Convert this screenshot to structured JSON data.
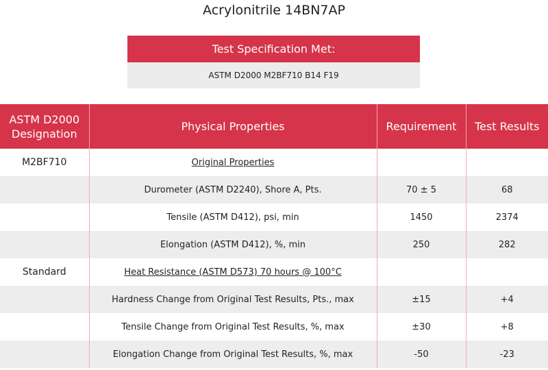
{
  "title": "Acrylonitrile 14BN7AP",
  "spec": {
    "heading": "Test Specification Met:",
    "value": "ASTM D2000 M2BF710 B14 F19"
  },
  "table": {
    "headers": [
      "ASTM D2000 Designation",
      "Physical Properties",
      "Requirement",
      "Test Results"
    ],
    "rows": [
      {
        "designation": "M2BF710",
        "property": "Original Properties",
        "requirement": "",
        "result": "",
        "section": true
      },
      {
        "designation": "",
        "property": "Durometer (ASTM D2240), Shore A, Pts.",
        "requirement": "70 ± 5",
        "result": "68"
      },
      {
        "designation": "",
        "property": "Tensile (ASTM D412), psi, min",
        "requirement": "1450",
        "result": "2374"
      },
      {
        "designation": "",
        "property": "Elongation (ASTM D412), %, min",
        "requirement": "250",
        "result": "282"
      },
      {
        "designation": "Standard",
        "property": "Heat Resistance (ASTM D573) 70 hours @ 100°C",
        "requirement": "",
        "result": "",
        "section": true
      },
      {
        "designation": "",
        "property": "Hardness Change from Original Test Results, Pts., max",
        "requirement": "±15",
        "result": "+4"
      },
      {
        "designation": "",
        "property": "Tensile Change from Original Test Results, %, max",
        "requirement": "±30",
        "result": "+8"
      },
      {
        "designation": "",
        "property": "Elongation Change from Original Test Results, %, max",
        "requirement": "-50",
        "result": "-23"
      }
    ]
  },
  "colors": {
    "accent": "#d6344a",
    "stripe": "#ededed"
  }
}
